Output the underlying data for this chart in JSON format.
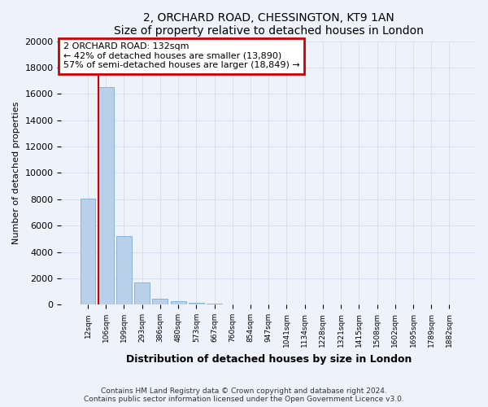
{
  "title": "2, ORCHARD ROAD, CHESSINGTON, KT9 1AN",
  "subtitle": "Size of property relative to detached houses in London",
  "xlabel": "Distribution of detached houses by size in London",
  "ylabel": "Number of detached properties",
  "footnote1": "Contains HM Land Registry data © Crown copyright and database right 2024.",
  "footnote2": "Contains public sector information licensed under the Open Government Licence v3.0.",
  "annotation_line1": "2 ORCHARD ROAD: 132sqm",
  "annotation_line2": "← 42% of detached houses are smaller (13,890)",
  "annotation_line3": "57% of semi-detached houses are larger (18,849) →",
  "red_line_x": 0.5,
  "categories": [
    "12sqm",
    "106sqm",
    "199sqm",
    "293sqm",
    "386sqm",
    "480sqm",
    "573sqm",
    "667sqm",
    "760sqm",
    "854sqm",
    "947sqm",
    "1041sqm",
    "1134sqm",
    "1228sqm",
    "1321sqm",
    "1415sqm",
    "1508sqm",
    "1602sqm",
    "1695sqm",
    "1789sqm",
    "1882sqm"
  ],
  "values": [
    8050,
    16500,
    5200,
    1700,
    480,
    280,
    170,
    90,
    50,
    25,
    12,
    6,
    4,
    2,
    1,
    1,
    0,
    0,
    0,
    0,
    0
  ],
  "bar_color": "#b8d0ea",
  "bar_edge_color": "#7aadd4",
  "red_line_color": "#cc0000",
  "annotation_box_color": "#cc0000",
  "bg_color": "#eef2fa",
  "grid_color": "#d8dff0",
  "ylim": [
    0,
    20000
  ],
  "yticks": [
    0,
    2000,
    4000,
    6000,
    8000,
    10000,
    12000,
    14000,
    16000,
    18000,
    20000
  ]
}
